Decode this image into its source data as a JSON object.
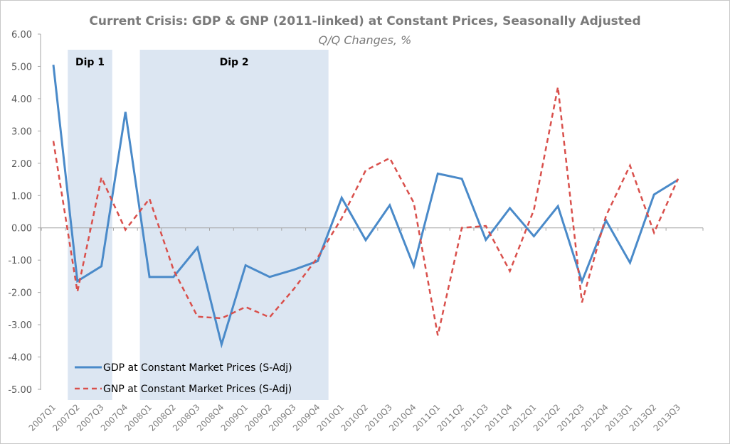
{
  "chart_data": {
    "type": "line",
    "title": "Current Crisis: GDP & GNP (2011-linked) at Constant Prices, Seasonally Adjusted",
    "subtitle": "Q/Q Changes, %",
    "xlabel": "",
    "ylabel": "",
    "ylim": [
      -5,
      6
    ],
    "yticks": [
      "6.00",
      "5.00",
      "4.00",
      "3.00",
      "2.00",
      "1.00",
      "0.00",
      "-1.00",
      "-2.00",
      "-3.00",
      "-4.00",
      "-5.00"
    ],
    "categories": [
      "2007Q1",
      "2007Q2",
      "2007Q3",
      "2007Q4",
      "2008Q1",
      "2008Q2",
      "2008Q3",
      "2008Q4",
      "2009Q1",
      "2009Q2",
      "2009Q3",
      "2009Q4",
      "2010Q1",
      "2010Q2",
      "2010Q3",
      "2010Q4",
      "2011Q1",
      "2011Q2",
      "2011Q3",
      "2011Q4",
      "2012Q1",
      "2012Q2",
      "2012Q3",
      "2012Q4",
      "2013Q1",
      "2013Q2",
      "2013Q3"
    ],
    "series": [
      {
        "name": "GDP at Constant Market Prices (S-Adj)",
        "color": "#4a8ac9",
        "style": "solid",
        "values": [
          5.05,
          -1.65,
          -1.19,
          3.59,
          -1.52,
          -1.52,
          -0.61,
          -3.61,
          -1.16,
          -1.52,
          -1.3,
          -1.03,
          0.93,
          -0.38,
          0.7,
          -1.19,
          1.68,
          1.52,
          -0.37,
          0.61,
          -0.26,
          0.67,
          -1.66,
          0.23,
          -1.08,
          1.03,
          1.49
        ]
      },
      {
        "name": "GNP at Constant Market Prices (S-Adj)",
        "color": "#d9504c",
        "style": "dashed",
        "values": [
          2.69,
          -1.98,
          1.56,
          -0.06,
          0.9,
          -1.3,
          -2.75,
          -2.8,
          -2.45,
          -2.77,
          -1.9,
          -0.92,
          0.3,
          1.78,
          2.16,
          0.78,
          -3.33,
          0.0,
          0.06,
          -1.34,
          0.56,
          4.36,
          -2.31,
          0.37,
          1.93,
          -0.15,
          1.52
        ]
      }
    ],
    "annotations": [
      {
        "label": "Dip 1",
        "from": "2007Q2",
        "to": "2007Q3"
      },
      {
        "label": "Dip 2",
        "from": "2008Q1",
        "to": "2009Q4"
      }
    ],
    "shade_color": "#dce6f2",
    "grid": false,
    "legend": "bottom-left"
  }
}
